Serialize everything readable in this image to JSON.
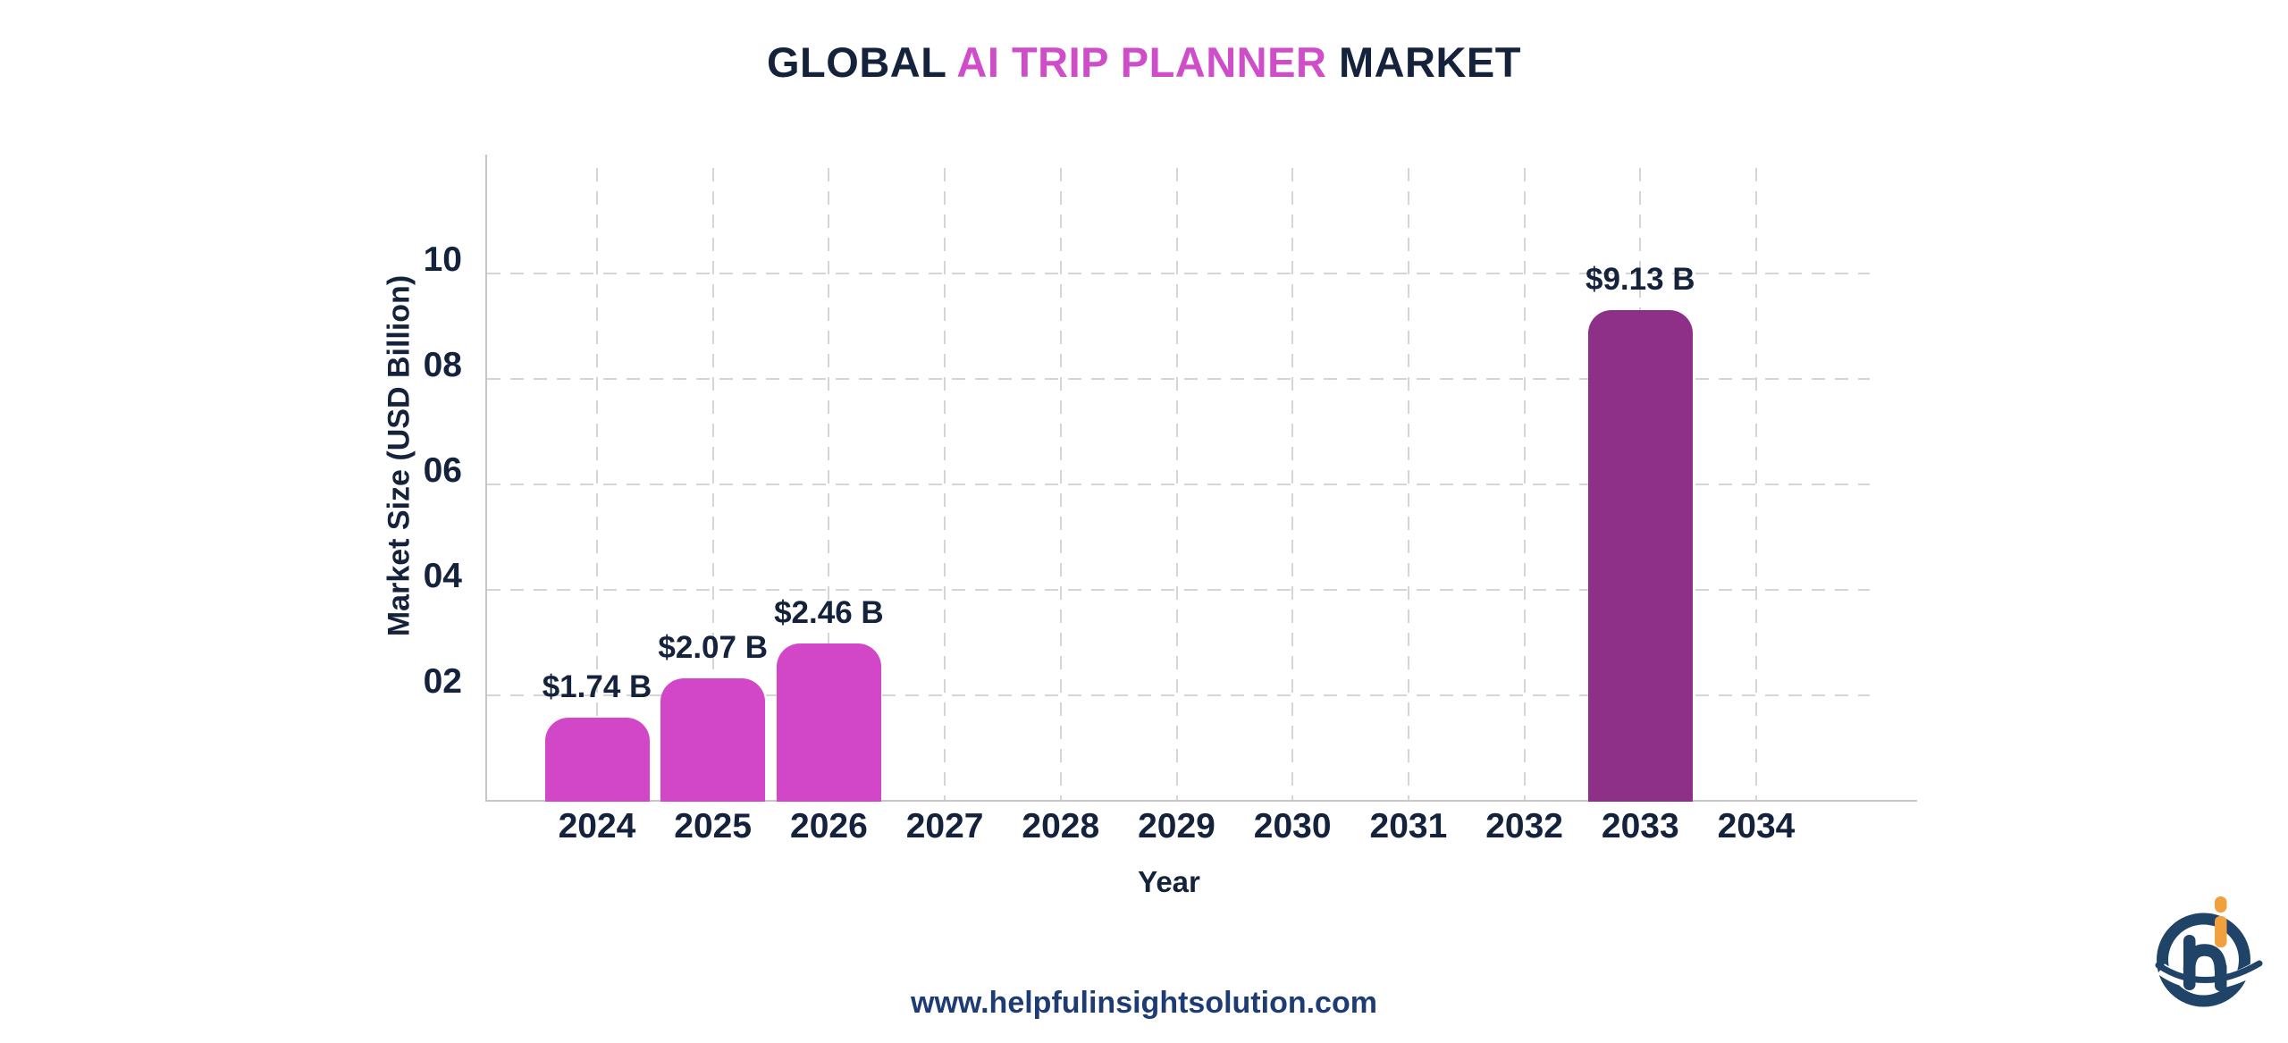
{
  "title": {
    "part1": "GLOBAL ",
    "accent": "AI TRIP PLANNER",
    "part2": " MARKET"
  },
  "chart_data": {
    "type": "bar",
    "title": "GLOBAL AI TRIP PLANNER MARKET",
    "xlabel": "Year",
    "ylabel": "Market Size (USD Billion)",
    "categories": [
      "2024",
      "2025",
      "2026",
      "2027",
      "2028",
      "2029",
      "2030",
      "2031",
      "2032",
      "2033",
      "2034"
    ],
    "values": [
      1.74,
      2.07,
      2.46,
      null,
      null,
      null,
      null,
      null,
      null,
      9.13,
      null
    ],
    "value_labels": [
      "$1.74 B",
      "$2.07 B",
      "$2.46 B",
      null,
      null,
      null,
      null,
      null,
      null,
      "$9.13 B",
      null
    ],
    "bar_colors": [
      "#d246c8",
      "#d246c8",
      "#d246c8",
      null,
      null,
      null,
      null,
      null,
      null,
      "#8e2f88",
      null
    ],
    "ylim": [
      0,
      12.3
    ],
    "yticks": [
      2,
      4,
      6,
      8,
      10
    ],
    "ytick_labels": [
      "02",
      "04",
      "06",
      "08",
      "10"
    ],
    "grid": "dashed-horizontal-and-vertical",
    "legend": null
  },
  "footer": {
    "url": "www.helpfulinsightsolution.com"
  },
  "logo": {
    "name": "helpful-insight-solution-logo",
    "navy": "#204468",
    "orange": "#f0a03c"
  },
  "colors": {
    "navy_text": "#14223c",
    "magenta_bar": "#d246c8",
    "purple_bar": "#8e2f88",
    "title_accent": "#cf4dc9",
    "url_text": "#1e3c74",
    "gridline": "#d5d5d5",
    "axis_line": "#c6c6c6",
    "background": "#ffffff"
  }
}
